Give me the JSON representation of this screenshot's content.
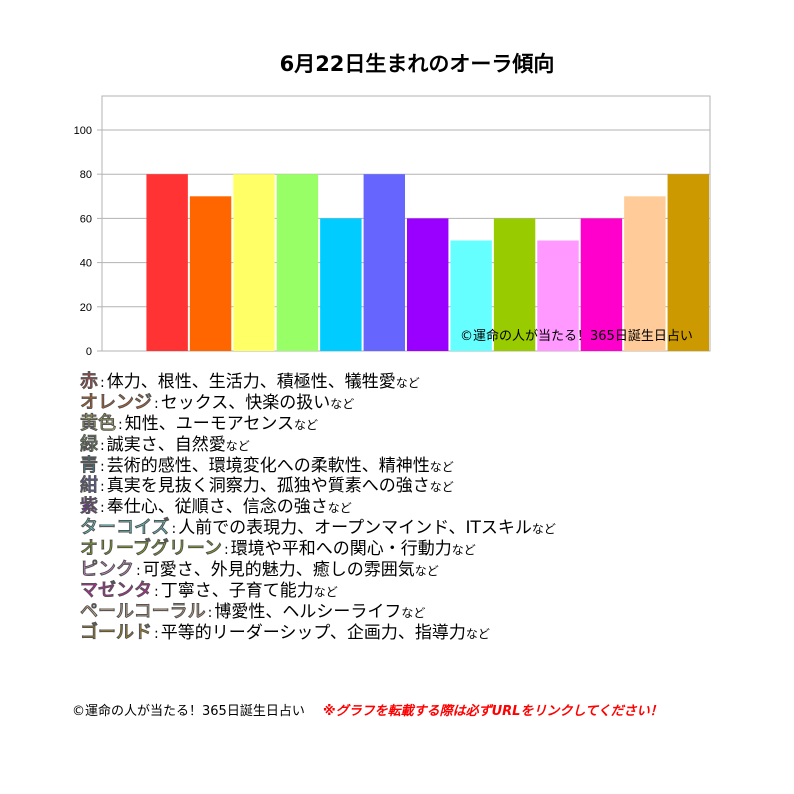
{
  "title": "6月22日生まれのオーラ傾向",
  "colors": {
    "赤": "#ff3333",
    "オレンジ": "#ff6600",
    "黄色": "#ffff66",
    "緑": "#99ff66",
    "青": "#00ccff",
    "紺": "#6666ff",
    "紫": "#9900ff",
    "ターコイズ": "#66ffff",
    "オリーブグリーン": "#99cc00",
    "ピンク": "#ff99ff",
    "マゼンタ": "#ff00cc",
    "ペールコーラル": "#ffcc99",
    "ゴールド": "#cc9900"
  },
  "chart_data": {
    "type": "bar",
    "title": "6月22日生まれのオーラ傾向",
    "categories": [
      "",
      "赤",
      "オレンジ",
      "黄色",
      "緑",
      "青",
      "紺",
      "紫",
      "ターコイズ",
      "オリーブグリーン",
      "ピンク",
      "マゼンタ",
      "ペールコーラル",
      "ゴールド"
    ],
    "values": [
      null,
      80,
      70,
      80,
      80,
      60,
      80,
      60,
      50,
      60,
      50,
      60,
      70,
      80
    ],
    "ylim": [
      0,
      100
    ],
    "yticks": [
      0,
      20,
      40,
      60,
      80,
      100
    ],
    "grid": true,
    "watermark": "©運命の人が当たる！365日誕生日占い"
  },
  "legend": [
    {
      "name": "赤",
      "desc": "体力、根性、生活力、積極性、犠牲愛"
    },
    {
      "name": "オレンジ",
      "desc": "セックス、快楽の扱い"
    },
    {
      "name": "黄色",
      "desc": "知性、ユーモアセンス"
    },
    {
      "name": "緑",
      "desc": "誠実さ、自然愛"
    },
    {
      "name": "青",
      "desc": "芸術的感性、環境変化への柔軟性、精神性"
    },
    {
      "name": "紺",
      "desc": "真実を見抜く洞察力、孤独や質素への強さ"
    },
    {
      "name": "紫",
      "desc": "奉仕心、従順さ、信念の強さ"
    },
    {
      "name": "ターコイズ",
      "desc": "人前での表現力、オープンマインド、ITスキル"
    },
    {
      "name": "オリーブグリーン",
      "desc": "環境や平和への関心・行動力"
    },
    {
      "name": "ピンク",
      "desc": "可愛さ、外見的魅力、癒しの雰囲気"
    },
    {
      "name": "マゼンタ",
      "desc": "丁寧さ、子育て能力"
    },
    {
      "name": "ペールコーラル",
      "desc": "博愛性、ヘルシーライフ"
    },
    {
      "name": "ゴールド",
      "desc": "平等的リーダーシップ、企画力、指導力"
    }
  ],
  "separator": ":",
  "suffix": "など",
  "footer": {
    "copyright": "©運命の人が当たる！365日誕生日占い",
    "warning": "※グラフを転載する際は必ずURLをリンクしてください！"
  }
}
